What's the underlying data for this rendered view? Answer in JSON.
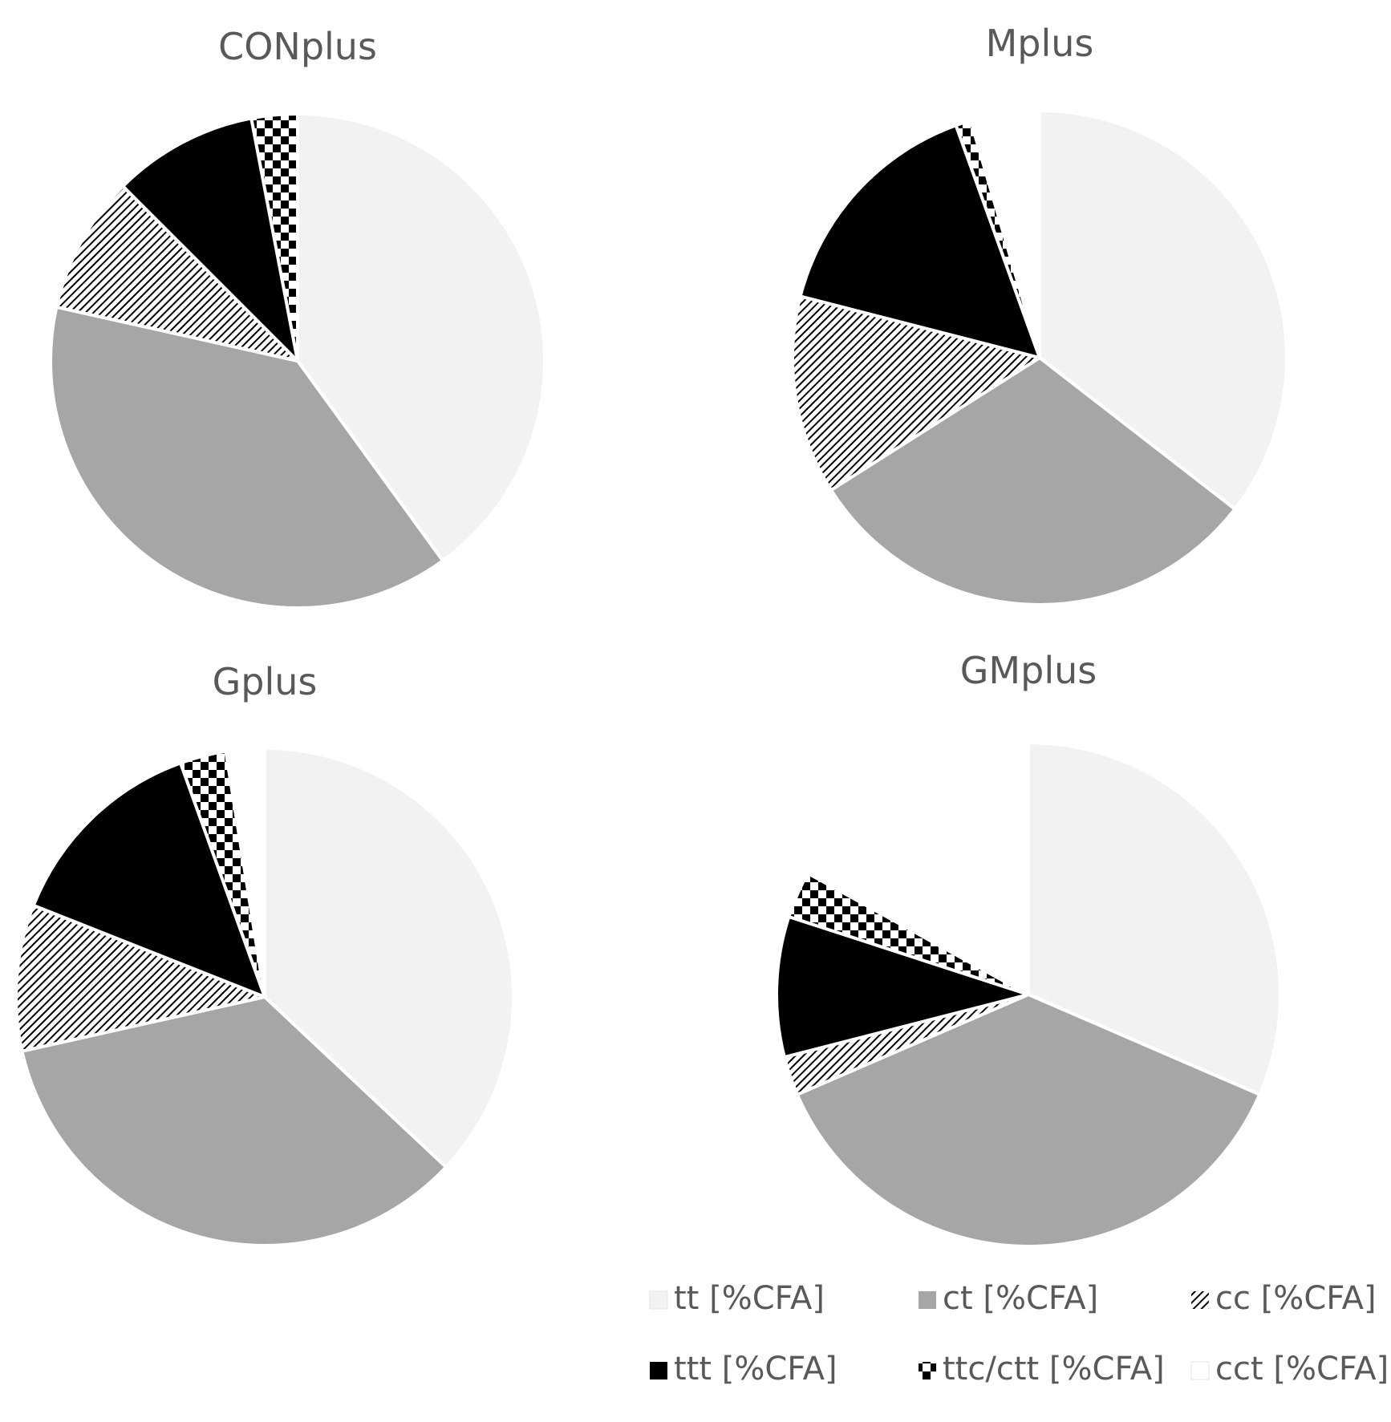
{
  "chart_data": [
    {
      "type": "pie",
      "title": "CONplus",
      "slices": [
        {
          "label": "tt [%CFA]",
          "value": 40.0
        },
        {
          "label": "ct [%CFA]",
          "value": 38.5
        },
        {
          "label": "cc [%CFA]",
          "value": 9.0
        },
        {
          "label": "ttt [%CFA]",
          "value": 9.5
        },
        {
          "label": "ttc/ctt [%CFA]",
          "value": 3.0
        },
        {
          "label": "cct [%CFA]",
          "value": 0.0
        }
      ]
    },
    {
      "type": "pie",
      "title": "Mplus",
      "slices": [
        {
          "label": "tt [%CFA]",
          "value": 35.5
        },
        {
          "label": "ct [%CFA]",
          "value": 30.5
        },
        {
          "label": "cc [%CFA]",
          "value": 13.0
        },
        {
          "label": "ttt [%CFA]",
          "value": 15.5
        },
        {
          "label": "ttc/ctt [%CFA]",
          "value": 1.0
        },
        {
          "label": "cct [%CFA]",
          "value": 4.5
        }
      ]
    },
    {
      "type": "pie",
      "title": "Gplus",
      "slices": [
        {
          "label": "tt [%CFA]",
          "value": 37.0
        },
        {
          "label": "ct [%CFA]",
          "value": 34.5
        },
        {
          "label": "cc [%CFA]",
          "value": 9.5
        },
        {
          "label": "ttt [%CFA]",
          "value": 13.5
        },
        {
          "label": "ttc/ctt [%CFA]",
          "value": 3.0
        },
        {
          "label": "cct [%CFA]",
          "value": 2.5
        }
      ]
    },
    {
      "type": "pie",
      "title": "GMplus",
      "slices": [
        {
          "label": "tt [%CFA]",
          "value": 31.5
        },
        {
          "label": "ct [%CFA]",
          "value": 37.0
        },
        {
          "label": "cc [%CFA]",
          "value": 2.5
        },
        {
          "label": "ttt [%CFA]",
          "value": 9.0
        },
        {
          "label": "ttc/ctt [%CFA]",
          "value": 3.0
        },
        {
          "label": "cct [%CFA]",
          "value": 17.0
        }
      ]
    }
  ],
  "legend": {
    "position": "bottom-right",
    "items": [
      {
        "label": "tt [%CFA]",
        "fill": "#f2f2f2",
        "pattern": "solid"
      },
      {
        "label": "ct [%CFA]",
        "fill": "#a6a6a6",
        "pattern": "solid"
      },
      {
        "label": "cc [%CFA]",
        "fill": "#000000",
        "pattern": "diagonal-lines"
      },
      {
        "label": "ttt [%CFA]",
        "fill": "#000000",
        "pattern": "solid"
      },
      {
        "label": "ttc/ctt [%CFA]",
        "fill": "#000000",
        "pattern": "checkerboard"
      },
      {
        "label": "cct [%CFA]",
        "fill": "#ffffff",
        "pattern": "solid"
      }
    ]
  },
  "colors": {
    "title": "#595959",
    "legend_text": "#595959",
    "slice_border": "#ffffff"
  }
}
